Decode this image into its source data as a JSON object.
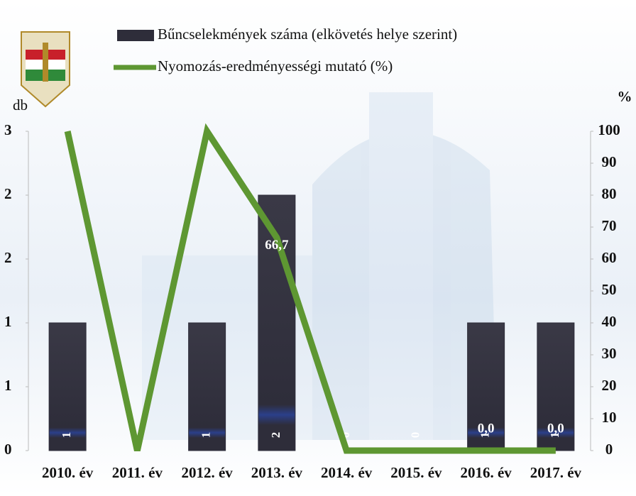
{
  "chart_data": {
    "type": "bar",
    "categories": [
      "2010. év",
      "2011. év",
      "2012. év",
      "2013. év",
      "2014. év",
      "2015. év",
      "2016. év",
      "2017. év"
    ],
    "series": [
      {
        "name": "Bűncselekmények száma (elkövetés helye szerint)",
        "type": "bar",
        "color": "#2e2d3a",
        "values": [
          1,
          0,
          1,
          2,
          0,
          0,
          1,
          1
        ]
      },
      {
        "name": "Nyomozás-eredményességi mutató (%)",
        "type": "line",
        "axis": "y2",
        "color": "#5e9732",
        "values": [
          100,
          0,
          100,
          66.7,
          0,
          0,
          0,
          0
        ],
        "value_labels": [
          null,
          null,
          null,
          "66,7",
          null,
          null,
          "0,0",
          "0,0"
        ]
      }
    ],
    "ylabel": "db",
    "y2label": "%",
    "ylim": [
      0,
      2.5
    ],
    "yticks": [
      0,
      {
        "value": 0.5,
        "label": "1"
      },
      1,
      {
        "value": 1.5,
        "label": "2"
      },
      2,
      {
        "value": 2.5,
        "label": "3"
      }
    ],
    "y2lim": [
      0,
      100
    ],
    "y2ticks": [
      0,
      10,
      20,
      30,
      40,
      50,
      60,
      70,
      80,
      90,
      100
    ]
  }
}
